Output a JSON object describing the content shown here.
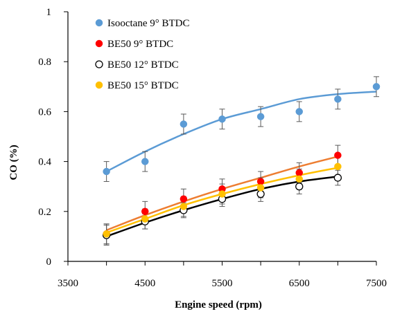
{
  "chart_data": {
    "type": "scatter",
    "title": "",
    "xlabel": "Engine speed (rpm)",
    "ylabel": "CO (%)",
    "xlim": [
      3500,
      7500
    ],
    "ylim": [
      0,
      1
    ],
    "xticks": [
      3500,
      4500,
      5500,
      6500,
      7500
    ],
    "xtick_labels": [
      "3500",
      "4500",
      "5500",
      "6500",
      "7500"
    ],
    "yticks": [
      0,
      0.2,
      0.4,
      0.6,
      0.8,
      1
    ],
    "ytick_labels": [
      "0",
      "0.2",
      "0.4",
      "0.6",
      "0.8",
      "1"
    ],
    "minor_xticks": [
      4000,
      5000,
      6000,
      7000
    ],
    "grid": false,
    "legend_position": "top-left",
    "series": [
      {
        "name": "Isooctane 9° BTDC",
        "color": "#5b9bd5",
        "marker": "filled-circle",
        "trend_color": "#5b9bd5",
        "x": [
          4000,
          4500,
          5000,
          5500,
          6000,
          6500,
          7000,
          7500
        ],
        "y": [
          0.36,
          0.4,
          0.55,
          0.57,
          0.58,
          0.6,
          0.65,
          0.7
        ],
        "error": [
          0.04,
          0.04,
          0.04,
          0.04,
          0.04,
          0.04,
          0.04,
          0.04
        ],
        "trend": [
          0.36,
          0.44,
          0.51,
          0.57,
          0.61,
          0.65,
          0.67,
          0.68
        ]
      },
      {
        "name": "BE50 9° BTDC",
        "color": "#ff0000",
        "marker": "filled-circle",
        "trend_color": "#ed7d31",
        "x": [
          4000,
          4500,
          5000,
          5500,
          6000,
          6500,
          7000
        ],
        "y": [
          0.11,
          0.2,
          0.25,
          0.29,
          0.32,
          0.355,
          0.425
        ],
        "error": [
          0.04,
          0.04,
          0.04,
          0.04,
          0.04,
          0.04,
          0.04
        ],
        "trend": [
          0.125,
          0.185,
          0.24,
          0.29,
          0.335,
          0.38,
          0.42
        ]
      },
      {
        "name": "BE50 12° BTDC",
        "color": "#000000",
        "marker": "open-circle",
        "trend_color": "#000000",
        "x": [
          4000,
          4500,
          5000,
          5500,
          6000,
          6500,
          7000
        ],
        "y": [
          0.105,
          0.16,
          0.205,
          0.25,
          0.27,
          0.3,
          0.335
        ],
        "error": [
          0.04,
          0.03,
          0.03,
          0.03,
          0.03,
          0.03,
          0.03
        ],
        "trend": [
          0.1,
          0.155,
          0.205,
          0.25,
          0.29,
          0.32,
          0.34
        ]
      },
      {
        "name": "BE50 15° BTDC",
        "color": "#ffc000",
        "marker": "filled-circle",
        "trend_color": "#ffc000",
        "x": [
          4000,
          4500,
          5000,
          5500,
          6000,
          6500,
          7000
        ],
        "y": [
          0.11,
          0.17,
          0.22,
          0.27,
          0.295,
          0.33,
          0.38
        ],
        "error": [
          0.04,
          0.04,
          0.04,
          0.04,
          0.04,
          0.04,
          0.04
        ],
        "trend": [
          0.115,
          0.17,
          0.225,
          0.27,
          0.31,
          0.345,
          0.375
        ]
      }
    ]
  }
}
